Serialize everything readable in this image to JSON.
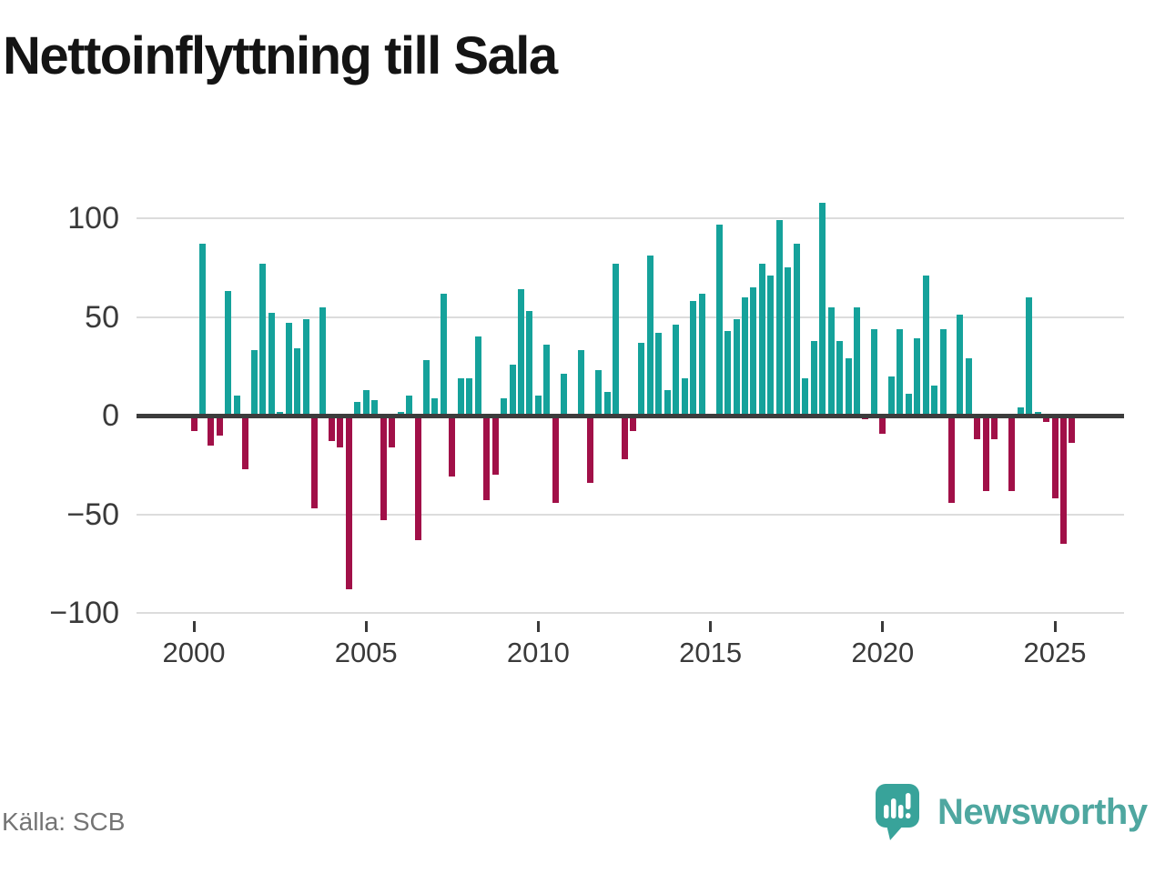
{
  "header": {
    "title": "Nettoinflyttning till Sala"
  },
  "footer": {
    "source_label": "Källa: SCB",
    "brand_name": "Newsworthy",
    "brand_icon": "bar-chart-speech-bubble-icon"
  },
  "chart_data": {
    "type": "bar",
    "title": "Nettoinflyttning till Sala",
    "xlabel": "",
    "ylabel": "",
    "frequency": "quarterly",
    "start_year": 2000,
    "start_quarter": 1,
    "end_year": 2025,
    "end_quarter": 3,
    "ylim": [
      -100,
      100
    ],
    "yticks": [
      100,
      50,
      0,
      -50,
      -100
    ],
    "xticks": [
      2000,
      2005,
      2010,
      2015,
      2020,
      2025
    ],
    "grid": "horizontal",
    "legend": "none",
    "positive_color": "#15a29b",
    "negative_color": "#a11048",
    "values": [
      -8,
      87,
      -15,
      -10,
      63,
      10,
      -27,
      33,
      77,
      52,
      2,
      47,
      34,
      49,
      -47,
      55,
      -13,
      -16,
      -88,
      7,
      13,
      8,
      -53,
      -16,
      2,
      10,
      -63,
      28,
      9,
      62,
      -31,
      19,
      19,
      40,
      -43,
      -30,
      9,
      26,
      64,
      53,
      10,
      36,
      -44,
      21,
      0,
      33,
      -34,
      23,
      12,
      77,
      -22,
      -8,
      37,
      81,
      42,
      13,
      46,
      19,
      58,
      62,
      0,
      97,
      43,
      49,
      60,
      65,
      77,
      71,
      99,
      75,
      87,
      19,
      38,
      108,
      55,
      38,
      29,
      55,
      -2,
      44,
      -9,
      20,
      44,
      11,
      39,
      71,
      15,
      44,
      -44,
      51,
      29,
      -12,
      -38,
      -12,
      0,
      -38,
      4,
      60,
      2,
      -3,
      -42,
      -65,
      -14
    ]
  },
  "colors": {
    "grid": "#dcdcdc",
    "zero_line": "#3c3c3c",
    "axis_text": "#3a3a3a",
    "title_text": "#141414",
    "source_text": "#747474",
    "brand_teal": "#4fa7a0",
    "brand_bubble": "#38a39a"
  }
}
